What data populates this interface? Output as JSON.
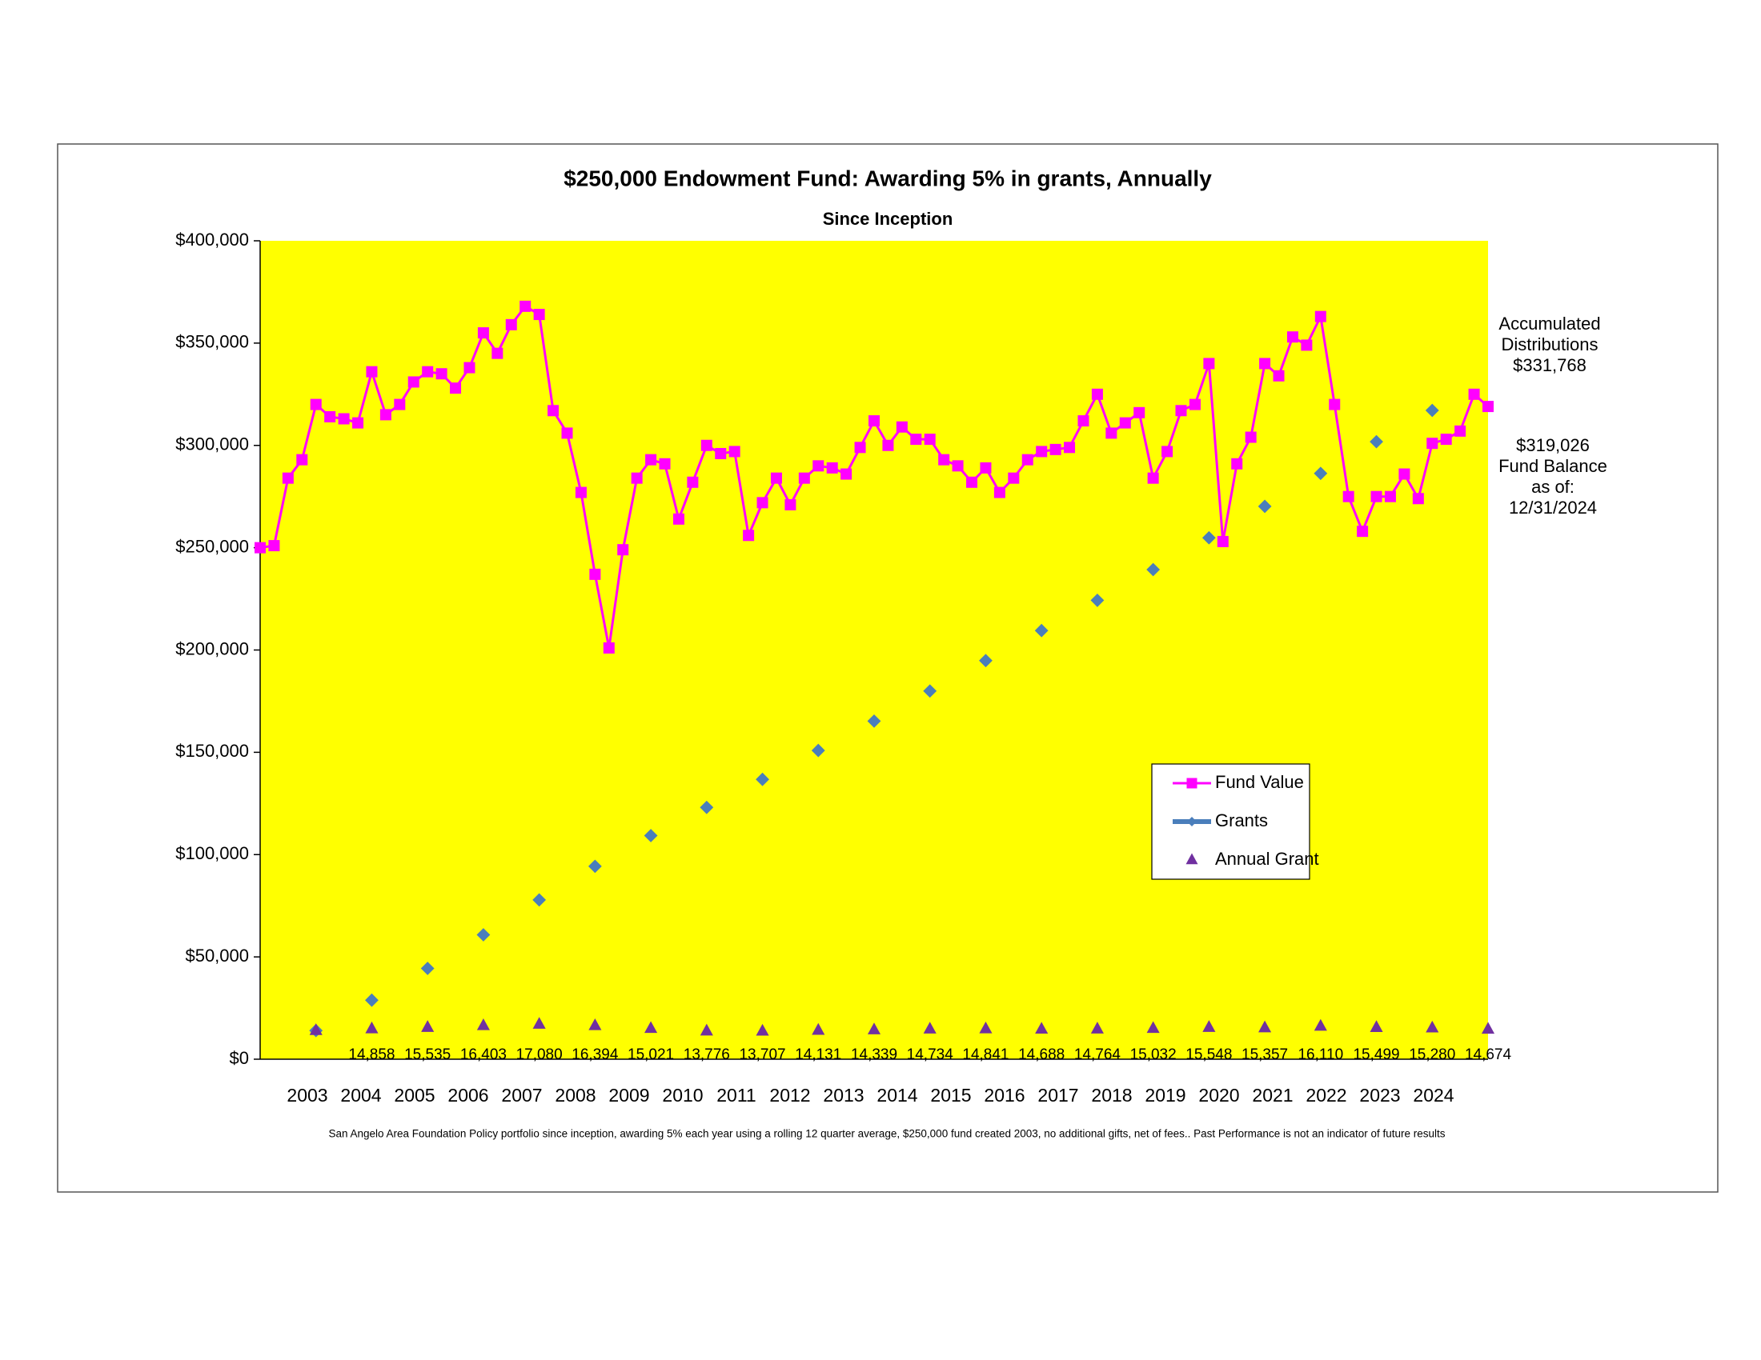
{
  "chart_data": {
    "type": "line",
    "title": "$250,000 Endowment Fund: Awarding 5% in grants, Annually",
    "subtitle": "Since Inception",
    "footnote": "San Angelo Area Foundation Policy portfolio since inception, awarding 5% each year using a rolling 12 quarter average, $250,000 fund created 2003, no additional gifts, net of fees.. Past Performance is not an indicator of future results",
    "annotations": [
      {
        "lines": [
          "Accumulated",
          "Distributions",
          "$331,768"
        ]
      },
      {
        "lines": [
          "$319,026",
          "Fund Balance",
          "as of:",
          "12/31/2024"
        ]
      }
    ],
    "x_labels": [
      "2003",
      "2004",
      "2005",
      "2006",
      "2007",
      "2008",
      "2009",
      "2010",
      "2011",
      "2012",
      "2013",
      "2014",
      "2015",
      "2016",
      "2017",
      "2018",
      "2019",
      "2020",
      "2021",
      "2022",
      "2023",
      "2024"
    ],
    "ylim": [
      0,
      400000
    ],
    "yticks": [
      {
        "value": 0,
        "label": "$0"
      },
      {
        "value": 50000,
        "label": "$50,000"
      },
      {
        "value": 100000,
        "label": "$100,000"
      },
      {
        "value": 150000,
        "label": "$150,000"
      },
      {
        "value": 200000,
        "label": "$200,000"
      },
      {
        "value": 250000,
        "label": "$250,000"
      },
      {
        "value": 300000,
        "label": "$300,000"
      },
      {
        "value": 350000,
        "label": "$350,000"
      },
      {
        "value": 400000,
        "label": "$400,000"
      }
    ],
    "plot_background": "#ffff00",
    "legend": "lower right",
    "series": [
      {
        "name": "Fund Value",
        "color": "#ff00ff",
        "marker": "square",
        "line": true,
        "values": [
          250000,
          251000,
          284000,
          293000,
          320000,
          314000,
          313000,
          311000,
          336000,
          315000,
          320000,
          331000,
          336000,
          335000,
          328000,
          338000,
          355000,
          345000,
          359000,
          368000,
          364000,
          317000,
          306000,
          277000,
          237000,
          201000,
          249000,
          284000,
          293000,
          291000,
          264000,
          282000,
          300000,
          296000,
          297000,
          256000,
          272000,
          284000,
          271000,
          284000,
          290000,
          289000,
          286000,
          299000,
          312000,
          300000,
          309000,
          303000,
          303000,
          293000,
          290000,
          282000,
          289000,
          277000,
          284000,
          293000,
          297000,
          298000,
          299000,
          312000,
          325000,
          306000,
          311000,
          316000,
          284000,
          297000,
          317000,
          320000,
          340000,
          253000,
          291000,
          304000,
          340000,
          334000,
          353000,
          349000,
          363000,
          320000,
          275000,
          258000,
          275000,
          275000,
          286000,
          274000,
          301000,
          303000,
          307000,
          325000,
          319026
        ]
      },
      {
        "name": "Grants",
        "color": "#4a7ebb",
        "marker": "diamond",
        "line": false,
        "values": [
          null,
          null,
          null,
          null,
          13997,
          null,
          null,
          null,
          28855,
          null,
          null,
          null,
          44390,
          null,
          null,
          null,
          60793,
          null,
          null,
          null,
          77873,
          null,
          null,
          null,
          94267,
          null,
          null,
          null,
          109288,
          null,
          null,
          null,
          123064,
          null,
          null,
          null,
          136771,
          null,
          null,
          null,
          150902,
          null,
          null,
          null,
          165241,
          null,
          null,
          null,
          179975,
          null,
          null,
          null,
          194816,
          null,
          null,
          null,
          209504,
          null,
          null,
          null,
          224268,
          null,
          null,
          null,
          239300,
          null,
          null,
          null,
          254848,
          null,
          null,
          null,
          270205,
          null,
          null,
          null,
          286315,
          null,
          null,
          null,
          301814,
          null,
          null,
          null,
          317094,
          null,
          null,
          null,
          null
        ]
      },
      {
        "name": "Annual Grant",
        "color": "#7030a0",
        "marker": "triangle",
        "line": false,
        "values": [
          null,
          null,
          null,
          null,
          13997,
          null,
          null,
          null,
          14858,
          null,
          null,
          null,
          15535,
          null,
          null,
          null,
          16403,
          null,
          null,
          null,
          17080,
          null,
          null,
          null,
          16394,
          null,
          null,
          null,
          15021,
          null,
          null,
          null,
          13776,
          null,
          null,
          null,
          13707,
          null,
          null,
          null,
          14131,
          null,
          null,
          null,
          14339,
          null,
          null,
          null,
          14734,
          null,
          null,
          null,
          14841,
          null,
          null,
          null,
          14688,
          null,
          null,
          null,
          14764,
          null,
          null,
          null,
          15032,
          null,
          null,
          null,
          15548,
          null,
          null,
          null,
          15357,
          null,
          null,
          null,
          16110,
          null,
          null,
          null,
          15499,
          null,
          null,
          null,
          15280,
          null,
          null,
          null,
          14674
        ],
        "value_labels": [
          null,
          null,
          null,
          null,
          null,
          null,
          null,
          null,
          "14,858",
          null,
          null,
          null,
          "15,535",
          null,
          null,
          null,
          "16,403",
          null,
          null,
          null,
          "17,080",
          null,
          null,
          null,
          "16,394",
          null,
          null,
          null,
          "15,021",
          null,
          null,
          null,
          "13,776",
          null,
          null,
          null,
          "13,707",
          null,
          null,
          null,
          "14,131",
          null,
          null,
          null,
          "14,339",
          null,
          null,
          null,
          "14,734",
          null,
          null,
          null,
          "14,841",
          null,
          null,
          null,
          "14,688",
          null,
          null,
          null,
          "14,764",
          null,
          null,
          null,
          "15,032",
          null,
          null,
          null,
          "15,548",
          null,
          null,
          null,
          "15,357",
          null,
          null,
          null,
          "16,110",
          null,
          null,
          null,
          "15,499",
          null,
          null,
          null,
          "15,280",
          null,
          null,
          null,
          "14,674"
        ]
      }
    ]
  }
}
